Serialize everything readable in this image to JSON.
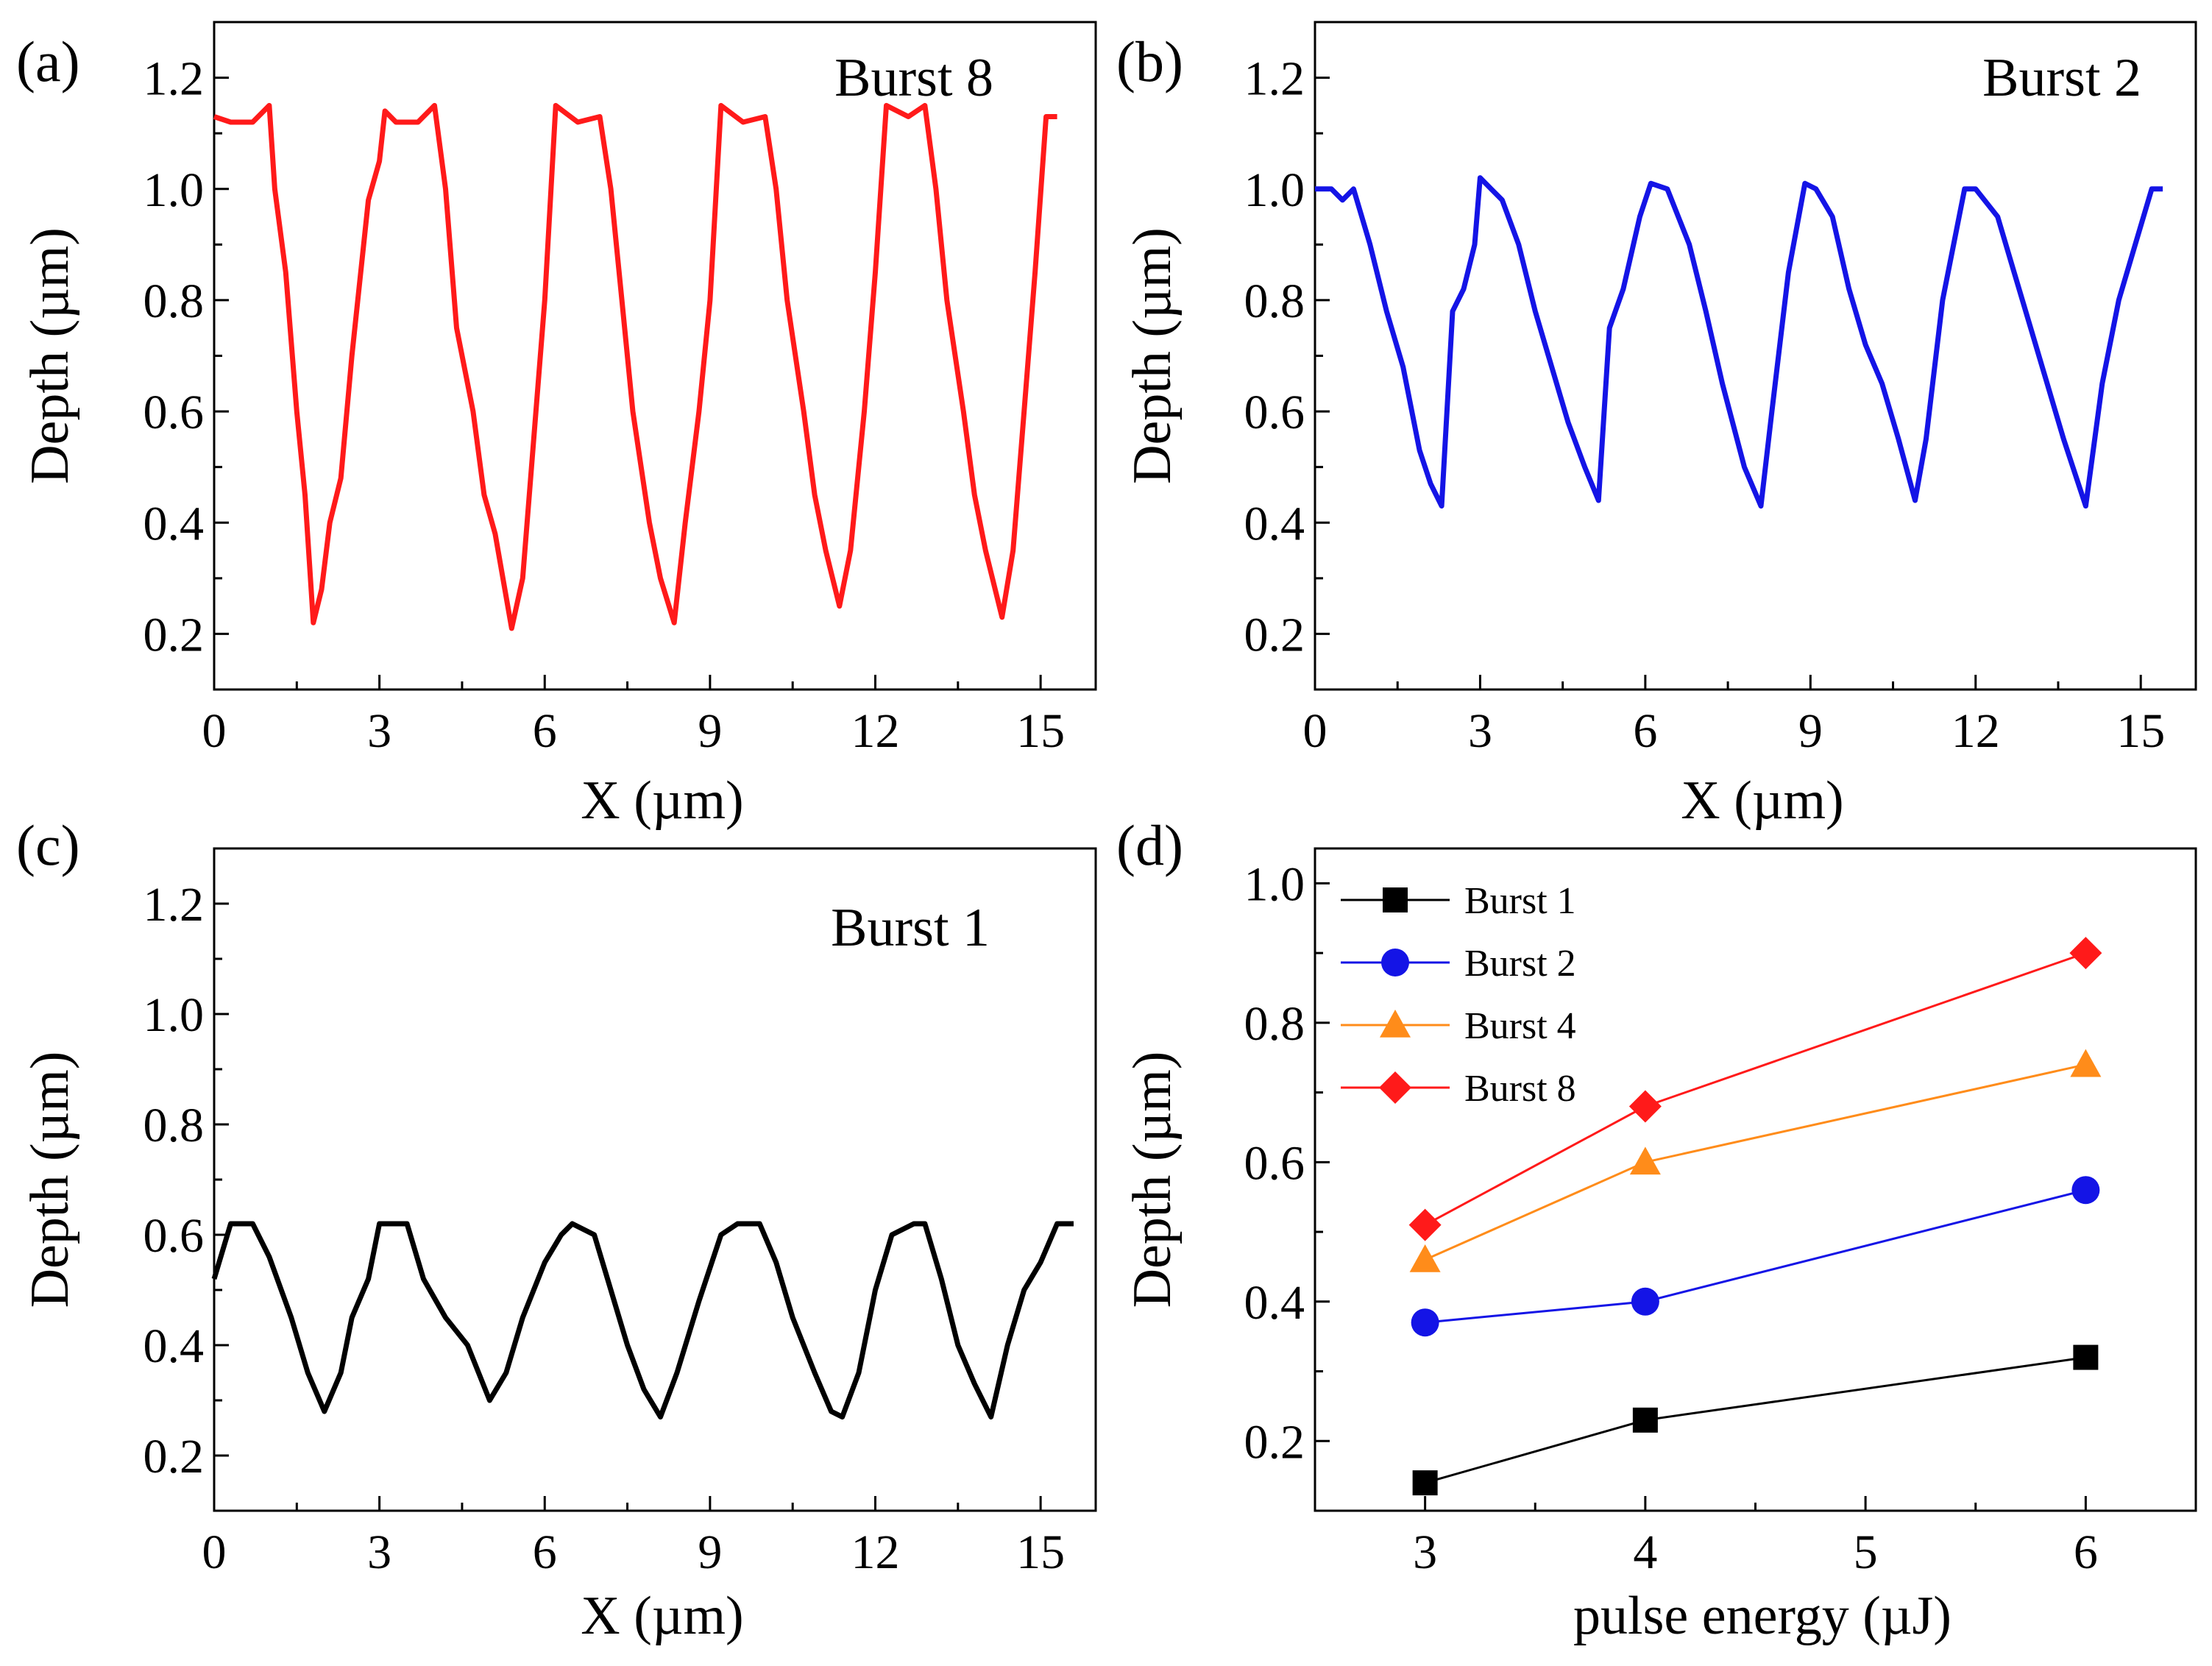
{
  "chart_data": [
    {
      "id": "a",
      "type": "line",
      "panel_label": "(a)",
      "annotation": "Burst 8",
      "xlabel": "X (µm)",
      "ylabel": "Depth (µm)",
      "xlim": [
        0,
        16
      ],
      "ylim": [
        0.1,
        1.3
      ],
      "xticks": [
        0,
        3,
        6,
        9,
        12,
        15
      ],
      "yticks": [
        0.2,
        0.4,
        0.6,
        0.8,
        1.0,
        1.2
      ],
      "xtick_labels": [
        "0",
        "3",
        "6",
        "9",
        "12",
        "15"
      ],
      "ytick_labels": [
        "0.2",
        "0.4",
        "0.6",
        "0.8",
        "1.0",
        "1.2"
      ],
      "color": "#ff1a1a",
      "series": [
        {
          "name": "Burst 8",
          "x": [
            0.0,
            0.3,
            0.7,
            1.0,
            1.1,
            1.3,
            1.5,
            1.65,
            1.8,
            1.95,
            2.1,
            2.3,
            2.5,
            2.8,
            3.0,
            3.1,
            3.3,
            3.7,
            4.0,
            4.2,
            4.4,
            4.7,
            4.9,
            5.1,
            5.4,
            5.6,
            5.8,
            6.0,
            6.2,
            6.6,
            7.0,
            7.2,
            7.4,
            7.6,
            7.9,
            8.1,
            8.35,
            8.55,
            8.8,
            9.0,
            9.2,
            9.6,
            10.0,
            10.2,
            10.4,
            10.7,
            10.9,
            11.1,
            11.35,
            11.55,
            11.8,
            12.0,
            12.2,
            12.6,
            12.9,
            13.1,
            13.3,
            13.6,
            13.8,
            14.0,
            14.3,
            14.5,
            14.7,
            14.9,
            15.1,
            15.3
          ],
          "y": [
            1.13,
            1.12,
            1.12,
            1.15,
            1.0,
            0.85,
            0.6,
            0.45,
            0.22,
            0.28,
            0.4,
            0.48,
            0.7,
            0.98,
            1.05,
            1.14,
            1.12,
            1.12,
            1.15,
            1.0,
            0.75,
            0.6,
            0.45,
            0.38,
            0.21,
            0.3,
            0.55,
            0.8,
            1.15,
            1.12,
            1.13,
            1.0,
            0.8,
            0.6,
            0.4,
            0.3,
            0.22,
            0.4,
            0.6,
            0.8,
            1.15,
            1.12,
            1.13,
            1.0,
            0.8,
            0.6,
            0.45,
            0.35,
            0.25,
            0.35,
            0.6,
            0.85,
            1.15,
            1.13,
            1.15,
            1.0,
            0.8,
            0.6,
            0.45,
            0.35,
            0.23,
            0.35,
            0.6,
            0.85,
            1.13,
            1.13
          ]
        }
      ]
    },
    {
      "id": "b",
      "type": "line",
      "panel_label": "(b)",
      "annotation": "Burst 2",
      "xlabel": "X (µm)",
      "ylabel": "Depth (µm)",
      "xlim": [
        0,
        16
      ],
      "ylim": [
        0.1,
        1.3
      ],
      "xticks": [
        0,
        3,
        6,
        9,
        12,
        15
      ],
      "yticks": [
        0.2,
        0.4,
        0.6,
        0.8,
        1.0,
        1.2
      ],
      "xtick_labels": [
        "0",
        "3",
        "6",
        "9",
        "12",
        "15"
      ],
      "ytick_labels": [
        "0.2",
        "0.4",
        "0.6",
        "0.8",
        "1.0",
        "1.2"
      ],
      "color": "#1414e6",
      "series": [
        {
          "name": "Burst 2",
          "x": [
            0.0,
            0.3,
            0.5,
            0.7,
            1.0,
            1.3,
            1.6,
            1.9,
            2.1,
            2.3,
            2.5,
            2.7,
            2.9,
            3.0,
            3.2,
            3.4,
            3.7,
            4.0,
            4.3,
            4.6,
            4.9,
            5.15,
            5.35,
            5.6,
            5.9,
            6.1,
            6.4,
            6.8,
            7.1,
            7.4,
            7.8,
            8.1,
            8.3,
            8.6,
            8.9,
            9.1,
            9.4,
            9.7,
            10.0,
            10.3,
            10.6,
            10.9,
            11.1,
            11.4,
            11.8,
            12.0,
            12.4,
            12.7,
            13.0,
            13.3,
            13.6,
            14.0,
            14.3,
            14.6,
            14.9,
            15.2,
            15.4
          ],
          "y": [
            1.0,
            1.0,
            0.98,
            1.0,
            0.9,
            0.78,
            0.68,
            0.53,
            0.47,
            0.43,
            0.78,
            0.82,
            0.9,
            1.02,
            1.0,
            0.98,
            0.9,
            0.78,
            0.68,
            0.58,
            0.5,
            0.44,
            0.75,
            0.82,
            0.95,
            1.01,
            1.0,
            0.9,
            0.78,
            0.65,
            0.5,
            0.43,
            0.6,
            0.85,
            1.01,
            1.0,
            0.95,
            0.82,
            0.72,
            0.65,
            0.55,
            0.44,
            0.55,
            0.8,
            1.0,
            1.0,
            0.95,
            0.85,
            0.75,
            0.65,
            0.55,
            0.43,
            0.65,
            0.8,
            0.9,
            1.0,
            1.0
          ]
        }
      ]
    },
    {
      "id": "c",
      "type": "line",
      "panel_label": "(c)",
      "annotation": "Burst 1",
      "xlabel": "X (µm)",
      "ylabel": "Depth (µm)",
      "xlim": [
        0,
        16
      ],
      "ylim": [
        0.1,
        1.3
      ],
      "xticks": [
        0,
        3,
        6,
        9,
        12,
        15
      ],
      "yticks": [
        0.2,
        0.4,
        0.6,
        0.8,
        1.0,
        1.2
      ],
      "xtick_labels": [
        "0",
        "3",
        "6",
        "9",
        "12",
        "15"
      ],
      "ytick_labels": [
        "0.2",
        "0.4",
        "0.6",
        "0.8",
        "1.0",
        "1.2"
      ],
      "color": "#000000",
      "series": [
        {
          "name": "Burst 1",
          "x": [
            0.0,
            0.3,
            0.7,
            1.0,
            1.4,
            1.7,
            2.0,
            2.3,
            2.5,
            2.8,
            3.0,
            3.5,
            3.8,
            4.2,
            4.6,
            4.8,
            5.0,
            5.3,
            5.6,
            6.0,
            6.3,
            6.5,
            6.9,
            7.2,
            7.5,
            7.8,
            8.1,
            8.4,
            8.8,
            9.2,
            9.5,
            9.9,
            10.2,
            10.5,
            10.9,
            11.2,
            11.4,
            11.7,
            12.0,
            12.3,
            12.7,
            12.9,
            13.2,
            13.5,
            13.8,
            14.1,
            14.4,
            14.7,
            15.0,
            15.3,
            15.6
          ],
          "y": [
            0.52,
            0.62,
            0.62,
            0.56,
            0.45,
            0.35,
            0.28,
            0.35,
            0.45,
            0.52,
            0.62,
            0.62,
            0.52,
            0.45,
            0.4,
            0.35,
            0.3,
            0.35,
            0.45,
            0.55,
            0.6,
            0.62,
            0.6,
            0.5,
            0.4,
            0.32,
            0.27,
            0.35,
            0.48,
            0.6,
            0.62,
            0.62,
            0.55,
            0.45,
            0.35,
            0.28,
            0.27,
            0.35,
            0.5,
            0.6,
            0.62,
            0.62,
            0.52,
            0.4,
            0.33,
            0.27,
            0.4,
            0.5,
            0.55,
            0.62,
            0.62
          ]
        }
      ]
    },
    {
      "id": "d",
      "type": "line",
      "panel_label": "(d)",
      "xlabel": "pulse energy (µJ)",
      "ylabel": "Depth (µm)",
      "xlim": [
        2.5,
        6.5
      ],
      "ylim": [
        0.1,
        1.05
      ],
      "xticks": [
        3,
        4,
        5,
        6
      ],
      "yticks": [
        0.2,
        0.4,
        0.6,
        0.8,
        1.0
      ],
      "xtick_labels": [
        "3",
        "4",
        "5",
        "6"
      ],
      "ytick_labels": [
        "0.2",
        "0.4",
        "0.6",
        "0.8",
        "1.0"
      ],
      "legend_position": "top-left",
      "series": [
        {
          "name": "Burst 1",
          "marker": "square",
          "color": "#000000",
          "x": [
            3,
            4,
            6
          ],
          "y": [
            0.14,
            0.23,
            0.32
          ]
        },
        {
          "name": "Burst 2",
          "marker": "circle",
          "color": "#1414e6",
          "x": [
            3,
            4,
            6
          ],
          "y": [
            0.37,
            0.4,
            0.56
          ]
        },
        {
          "name": "Burst 4",
          "marker": "triangle",
          "color": "#ff8c1a",
          "x": [
            3,
            4,
            6
          ],
          "y": [
            0.46,
            0.6,
            0.74
          ]
        },
        {
          "name": "Burst 8",
          "marker": "diamond",
          "color": "#ff1a1a",
          "x": [
            3,
            4,
            6
          ],
          "y": [
            0.51,
            0.68,
            0.9
          ]
        }
      ]
    }
  ]
}
